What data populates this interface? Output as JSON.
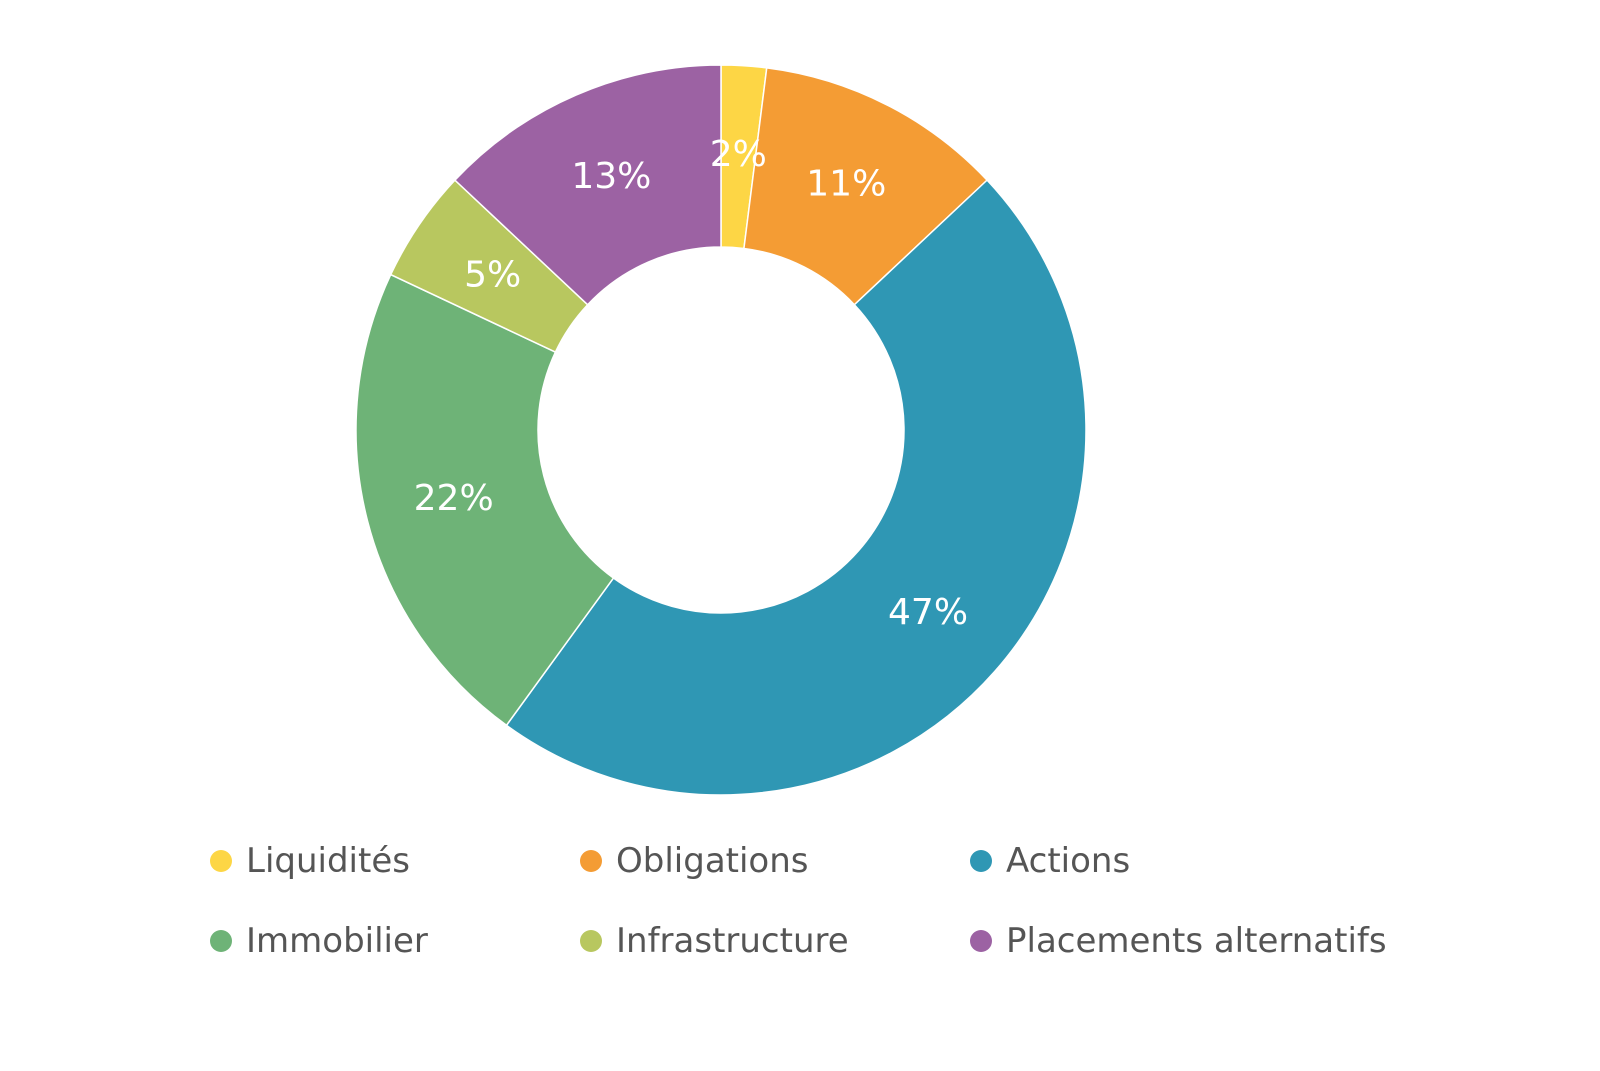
{
  "chart_data": {
    "type": "pie",
    "variant": "donut",
    "categories": [
      "Liquidités",
      "Obligations",
      "Actions",
      "Immobilier",
      "Infrastructure",
      "Placements alternatifs"
    ],
    "values": [
      2,
      11,
      47,
      22,
      5,
      13
    ],
    "data_labels": [
      "2%",
      "11%",
      "47%",
      "22%",
      "5%",
      "13%"
    ],
    "colors": [
      "#fdd645",
      "#f49c34",
      "#2f97b4",
      "#6eb377",
      "#b8c75f",
      "#9c62a3"
    ],
    "start_angle_deg": 0,
    "direction": "clockwise",
    "legend_position": "bottom",
    "title": ""
  }
}
